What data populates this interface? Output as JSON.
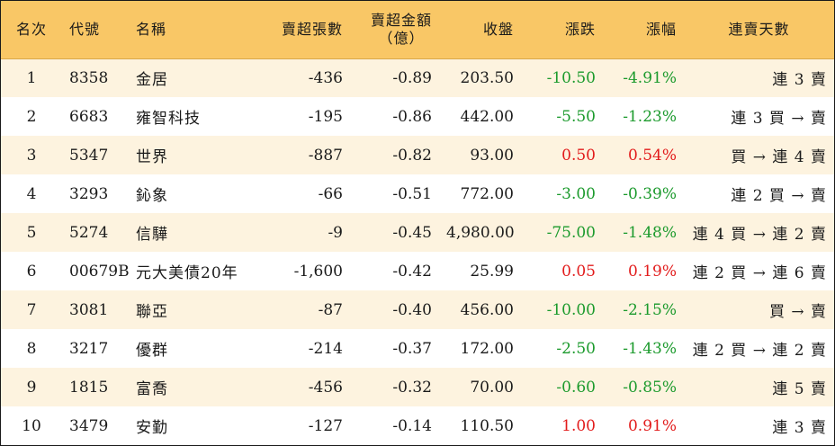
{
  "columns": {
    "rank": "名次",
    "code": "代號",
    "name": "名稱",
    "net_sell_lots": "賣超張數",
    "net_sell_amount_line1": "賣超金額",
    "net_sell_amount_line2": "（億）",
    "close": "收盤",
    "change": "漲跌",
    "change_pct": "漲幅",
    "streak": "連賣天數"
  },
  "colors": {
    "header_bg": "#f9c766",
    "stripe_bg": "#fdf3df",
    "up": "#e21b1b",
    "down": "#1b9a2c"
  },
  "rows": [
    {
      "rank": "1",
      "code": "8358",
      "name": "金居",
      "lots": "-436",
      "amount": "-0.89",
      "close": "203.50",
      "change": "-10.50",
      "pct": "-4.91%",
      "dir": "down",
      "streak": "連 3 賣"
    },
    {
      "rank": "2",
      "code": "6683",
      "name": "雍智科技",
      "lots": "-195",
      "amount": "-0.86",
      "close": "442.00",
      "change": "-5.50",
      "pct": "-1.23%",
      "dir": "down",
      "streak": "連 3 買 → 賣"
    },
    {
      "rank": "3",
      "code": "5347",
      "name": "世界",
      "lots": "-887",
      "amount": "-0.82",
      "close": "93.00",
      "change": "0.50",
      "pct": "0.54%",
      "dir": "up",
      "streak": "買 → 連 4 賣"
    },
    {
      "rank": "4",
      "code": "3293",
      "name": "鈊象",
      "lots": "-66",
      "amount": "-0.51",
      "close": "772.00",
      "change": "-3.00",
      "pct": "-0.39%",
      "dir": "down",
      "streak": "連 2 買 → 賣"
    },
    {
      "rank": "5",
      "code": "5274",
      "name": "信驊",
      "lots": "-9",
      "amount": "-0.45",
      "close": "4,980.00",
      "change": "-75.00",
      "pct": "-1.48%",
      "dir": "down",
      "streak": "連 4 買 → 連 2 賣"
    },
    {
      "rank": "6",
      "code": "00679B",
      "name": "元大美債20年",
      "lots": "-1,600",
      "amount": "-0.42",
      "close": "25.99",
      "change": "0.05",
      "pct": "0.19%",
      "dir": "up",
      "streak": "連 2 買 → 連 6 賣"
    },
    {
      "rank": "7",
      "code": "3081",
      "name": "聯亞",
      "lots": "-87",
      "amount": "-0.40",
      "close": "456.00",
      "change": "-10.00",
      "pct": "-2.15%",
      "dir": "down",
      "streak": "買 → 賣"
    },
    {
      "rank": "8",
      "code": "3217",
      "name": "優群",
      "lots": "-214",
      "amount": "-0.37",
      "close": "172.00",
      "change": "-2.50",
      "pct": "-1.43%",
      "dir": "down",
      "streak": "連 2 買 → 連 2 賣"
    },
    {
      "rank": "9",
      "code": "1815",
      "name": "富喬",
      "lots": "-456",
      "amount": "-0.32",
      "close": "70.00",
      "change": "-0.60",
      "pct": "-0.85%",
      "dir": "down",
      "streak": "連 5 賣"
    },
    {
      "rank": "10",
      "code": "3479",
      "name": "安勤",
      "lots": "-127",
      "amount": "-0.14",
      "close": "110.50",
      "change": "1.00",
      "pct": "0.91%",
      "dir": "up",
      "streak": "連 3 賣"
    }
  ]
}
